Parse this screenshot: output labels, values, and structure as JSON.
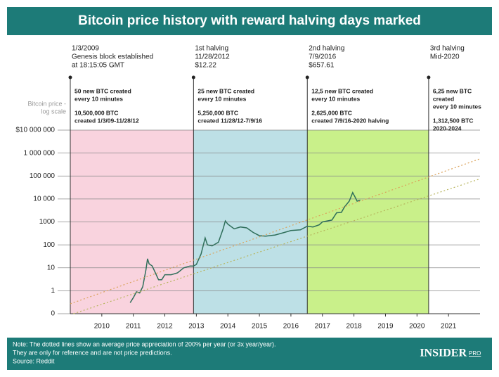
{
  "chart_data": {
    "type": "line",
    "title": "Bitcoin price history with reward halving days marked",
    "y_label": [
      "Bitcoin price -",
      "log scale"
    ],
    "log_y": true,
    "grid": true,
    "xlim": [
      2009,
      2022
    ],
    "xticks": [
      2010,
      2011,
      2012,
      2013,
      2014,
      2015,
      2016,
      2017,
      2018,
      2019,
      2020,
      2021
    ],
    "ylim": [
      0.1,
      10000000
    ],
    "yticks": [
      {
        "value": 10000000,
        "label": "$10 000 000"
      },
      {
        "value": 1000000,
        "label": "1 000 000"
      },
      {
        "value": 100000,
        "label": "100 000"
      },
      {
        "value": 10000,
        "label": "10 000"
      },
      1000,
      100,
      10,
      1,
      {
        "value": 0.1,
        "label": "0"
      }
    ],
    "eras": [
      {
        "start": 2009.0,
        "end": 2012.91,
        "color": "#f9d3de",
        "label": [
          "1/3/2009",
          "Genesis block established",
          "at 18:15:05 GMT"
        ],
        "info": [
          [
            "50 new BTC created",
            "every 10 minutes"
          ],
          [
            "10,500,000 BTC",
            "created 1/3/09-11/28/12"
          ]
        ]
      },
      {
        "start": 2012.91,
        "end": 2016.52,
        "color": "#bde0e6",
        "label": [
          "1st halving",
          "11/28/2012",
          "$12.22"
        ],
        "info": [
          [
            "25 new BTC created",
            "every 10 minutes"
          ],
          [
            "5,250,000 BTC",
            "created 11/28/12-7/9/16"
          ]
        ]
      },
      {
        "start": 2016.52,
        "end": 2020.37,
        "color": "#c9f08a",
        "label": [
          "2nd halving",
          "7/9/2016",
          "$657.61"
        ],
        "info": [
          [
            "12,5 new BTC created",
            "every 10 minutes"
          ],
          [
            "2,625,000 BTC",
            "created 7/9/16-2020 halving"
          ]
        ]
      },
      {
        "start": 2020.37,
        "end": 2022.0,
        "color": "#ffffff",
        "label": [
          "3rd halving",
          "Mid-2020"
        ],
        "info": [
          [
            "6,25 new BTC",
            "created",
            "every 10 minutes"
          ],
          [
            "1,312,500 BTC",
            "2020-2024"
          ]
        ]
      }
    ],
    "series": [
      {
        "color": "#2f6e5a",
        "style": "solid",
        "x": [
          2010.9,
          2011.0,
          2011.1,
          2011.2,
          2011.3,
          2011.4,
          2011.45,
          2011.5,
          2011.6,
          2011.7,
          2011.8,
          2011.9,
          2012.0,
          2012.2,
          2012.4,
          2012.6,
          2012.8,
          2012.91,
          2013.0,
          2013.15,
          2013.28,
          2013.35,
          2013.5,
          2013.7,
          2013.85,
          2013.92,
          2014.0,
          2014.2,
          2014.4,
          2014.6,
          2014.8,
          2015.0,
          2015.2,
          2015.5,
          2015.8,
          2016.0,
          2016.3,
          2016.52,
          2016.7,
          2016.9,
          2017.0,
          2017.3,
          2017.45,
          2017.6,
          2017.7,
          2017.85,
          2017.96,
          2018.05,
          2018.1,
          2018.2
        ],
        "values": [
          0.3,
          0.5,
          0.9,
          0.8,
          1.5,
          8,
          25,
          15,
          12,
          6,
          3,
          3,
          5,
          5,
          6,
          10,
          12,
          12,
          14,
          40,
          200,
          100,
          90,
          130,
          500,
          1100,
          800,
          500,
          600,
          550,
          350,
          250,
          240,
          270,
          350,
          420,
          450,
          650,
          600,
          750,
          1000,
          1200,
          2500,
          2600,
          4500,
          8000,
          19000,
          11000,
          8000,
          9000
        ]
      },
      {
        "color": "#dba25a",
        "style": "dotted",
        "x": [
          2009.0,
          2022.0
        ],
        "values": [
          0.27,
          560000
        ]
      },
      {
        "color": "#b7b45c",
        "style": "dotted",
        "x": [
          2009.1,
          2022.0
        ],
        "values": [
          0.1,
          75000
        ]
      }
    ],
    "note": [
      "Note: The dotted lines show an average price appreciation of 200% per year (or 3x year/year).",
      "They are only for reference and are not price predictions.",
      "Source: Reddit"
    ],
    "logo": [
      "INSIDER",
      "PRO"
    ]
  }
}
